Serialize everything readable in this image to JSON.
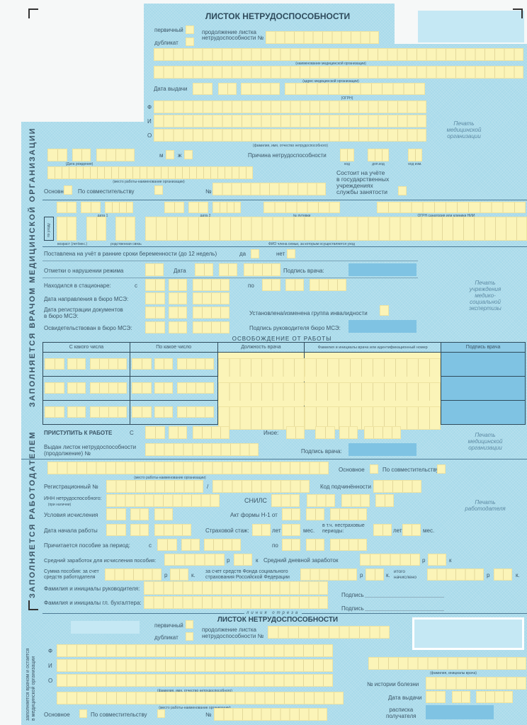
{
  "colors": {
    "form_background": "#a8daea",
    "field": "#fbf4b8",
    "signature_field": "#7fc3e3"
  },
  "header": {
    "title": "ЛИСТОК НЕТРУДОСПОСОБНОСТИ",
    "primary": "первичный",
    "duplicate": "дубликат",
    "continuation": "продолжение листка",
    "continuation2": "нетрудоспособности №"
  },
  "org": {
    "name_caption": "(наименование медицинской организации)",
    "address_caption": "(адрес медицинской организации)",
    "issue_date": "Дата выдачи",
    "ogrn_caption": "(ОГРН)",
    "stamp": "Печать\nмедицинской\nорганизации"
  },
  "patient": {
    "f": "Ф",
    "i": "И",
    "o": "О",
    "fio_caption": "(фамилия, имя, отчество нетрудоспособного)",
    "dob_caption": "(Дата рождения)",
    "male": "м",
    "female": "ж",
    "reason": "Причина нетрудоспособности",
    "code": "код",
    "extra_code": "доп.код",
    "code_change": "код изм.",
    "work_caption": "(место работы-наименование организации)",
    "employment_center": "Состоит на учёте\nв государственных\nучреждениях\nслужбы занятости",
    "main": "Основное",
    "part_time": "По совместительству",
    "number": "№"
  },
  "care": {
    "date1": "дата 1",
    "date2": "дата 2",
    "voucher": "№ путевки",
    "sanatorium_ogrn": "ОГРН санатория или клиники НИИ",
    "care_label": "по уходу",
    "age": "возраст (лет/мес.)",
    "relation": "родственная связь",
    "family_member": "ФИО члена семьи, за которым осуществляется уход"
  },
  "pregnancy": {
    "label": "Поставлена на учёт в ранние сроки беременности (до 12 недель)",
    "yes": "да",
    "no": "нет"
  },
  "regime": {
    "label": "Отметки о нарушении режима",
    "date": "Дата",
    "doctor_signature": "Подпись врача:"
  },
  "hospital": {
    "label": "Находился в стационаре:",
    "from": "с",
    "to": "по"
  },
  "mse": {
    "referral": "Дата направления в бюро МСЭ:",
    "registration": "Дата регистрации документов\nв бюро МСЭ:",
    "disability_group": "Установлена/изменена группа инвалидности",
    "examined": "Освидетельствован в бюро МСЭ:",
    "head_signature": "Подпись руководителя бюро МСЭ:",
    "stamp": "Печать\nучреждения\nмедико-\nсоциальной\nэкспертизы"
  },
  "release": {
    "title": "ОСВОБОЖДЕНИЕ ОТ РАБОТЫ",
    "columns": [
      "С какого числа",
      "По какое число",
      "Должность врача",
      "Фамилия и инициалы врача или идентификационный номер",
      "Подпись врача"
    ]
  },
  "return": {
    "label": "ПРИСТУПИТЬ К РАБОТЕ",
    "from": "С",
    "other": "Иное:",
    "issued": "Выдан листок нетрудоспособности\n(продолжение) №",
    "doctor_signature": "Подпись врача:",
    "stamp": "Печать\nмедицинской\nорганизации"
  },
  "side": {
    "doctor": "ЗАПОЛНЯЕТСЯ ВРАЧОМ МЕДИЦИНСКОЙ ОРГАНИЗАЦИИ",
    "employer": "ЗАПОЛНЯЕТСЯ РАБОТОДАТЕЛЕМ",
    "stub": "заполняется врачом и остается\nв медицинской организации"
  },
  "employer": {
    "work_caption": "(место работы-наименование организации)",
    "main": "Основное",
    "part_time": "По совместительству",
    "reg_no": "Регистрационный №",
    "slash": "/",
    "subordination": "Код подчинённости",
    "inn": "ИНН нетрудоспособного:",
    "inn_note": "(при наличии)",
    "snils": "СНИЛС",
    "conditions": "Условия исчисления",
    "act": "Акт формы Н-1 от",
    "start_date": "Дата начала работы",
    "insurance": "Страховой стаж:",
    "years": "лет",
    "months": "мес.",
    "non_insurance": "в т.ч. нестраховые\nпериоды:",
    "period": "Причитается пособие за период:",
    "from": "с",
    "to": "по",
    "avg_earnings": "Средний заработок для исчисления пособия:",
    "rub": "р",
    "kop": "к",
    "kop_dot": "к.",
    "avg_daily": "Средний дневной заработок",
    "amount_employer": "Сумма пособия: за счет\nсредств работодателя",
    "amount_fss": "за счет средств Фонда социального\nстрахования Российской Федерации",
    "total": "итого\nначислено",
    "head_name": "Фамилия и инициалы руководителя:",
    "accountant_name": "Фамилия и инициалы гл. бухгалтера:",
    "signature": "Подпись",
    "stamp": "Печать\nработодателя"
  },
  "cut_line": "линия отреза",
  "stub": {
    "title": "ЛИСТОК НЕТРУДОСПОСОБНОСТИ",
    "primary": "первичный",
    "duplicate": "дубликат",
    "continuation": "продолжение листка",
    "continuation2": "нетрудоспособности №",
    "f": "Ф",
    "i": "И",
    "o": "О",
    "fio_caption": "(фамилия, имя, отчество нетрудоспособного)",
    "work_caption": "(место работы-наименование организации)",
    "main": "Основное",
    "part_time": "По совместительству",
    "number": "№",
    "doctor_caption": "(фамилия, инициалы врача)",
    "history": "№ истории болезни",
    "issue_date": "Дата выдачи",
    "receipt": "расписка\nполучателя"
  }
}
